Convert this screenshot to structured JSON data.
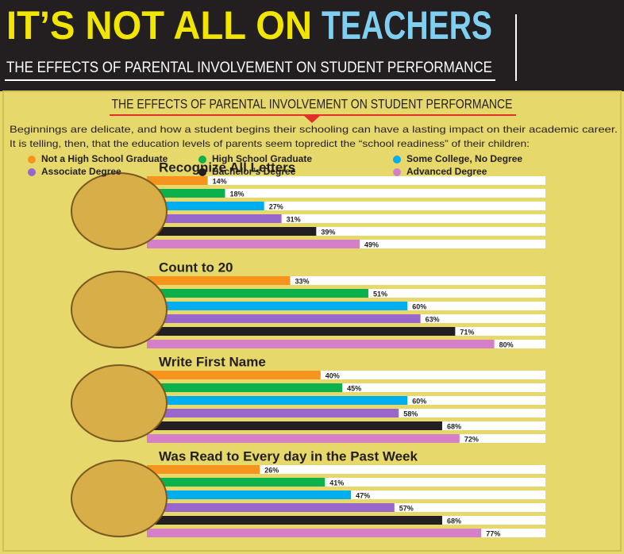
{
  "header": {
    "title_lead": "IT’S NOT ALL ON",
    "title_emphasis": "TEACHERS",
    "subtitle": "THE EFFECTS OF PARENTAL INVOLVEMENT ON STUDENT PERFORMANCE"
  },
  "section_title": "THE EFFECTS OF PARENTAL INVOLVEMENT ON STUDENT PERFORMANCE",
  "intro": [
    "Beginnings are delicate, and how a student begins their schooling can have a lasting impact on their academic career.",
    "It is telling, then, that the education levels of parents seem topredict the “school readiness” of their children:"
  ],
  "chart_data": {
    "type": "bar",
    "orientation": "horizontal",
    "xlim": [
      0,
      100
    ],
    "categories": [
      "Recognize All Letters",
      "Count to 20",
      "Write First Name",
      "Was Read to Every day in the Past Week"
    ],
    "series": [
      {
        "name": "Not a High School Graduate",
        "color": "#f7941d",
        "values": [
          14,
          33,
          40,
          26
        ],
        "value_labels": [
          "14%",
          "33%",
          "40%",
          "26%"
        ]
      },
      {
        "name": "High School Graduate",
        "color": "#0db14b",
        "values": [
          18,
          51,
          45,
          41
        ],
        "value_labels": [
          "18%",
          "51%",
          "45%",
          "41%"
        ]
      },
      {
        "name": "Some College, No Degree",
        "color": "#00aeef",
        "values": [
          27,
          60,
          60,
          47
        ],
        "value_labels": [
          "27%",
          "60%",
          "60%",
          "47%"
        ]
      },
      {
        "name": "Associate Degree",
        "color": "#9966cc",
        "values": [
          31,
          63,
          58,
          57
        ],
        "value_labels": [
          "31%",
          "63%",
          "58%",
          "57%"
        ]
      },
      {
        "name": "Bachelor’s Degree",
        "color": "#231f20",
        "values": [
          39,
          71,
          68,
          68
        ],
        "value_labels": [
          "39%",
          "71%",
          "68%",
          "68%"
        ]
      },
      {
        "name": "Advanced Degree",
        "color": "#d57fc9",
        "values": [
          49,
          80,
          72,
          77
        ],
        "value_labels": [
          "49%",
          "80%",
          "72%",
          "77%"
        ]
      }
    ]
  }
}
